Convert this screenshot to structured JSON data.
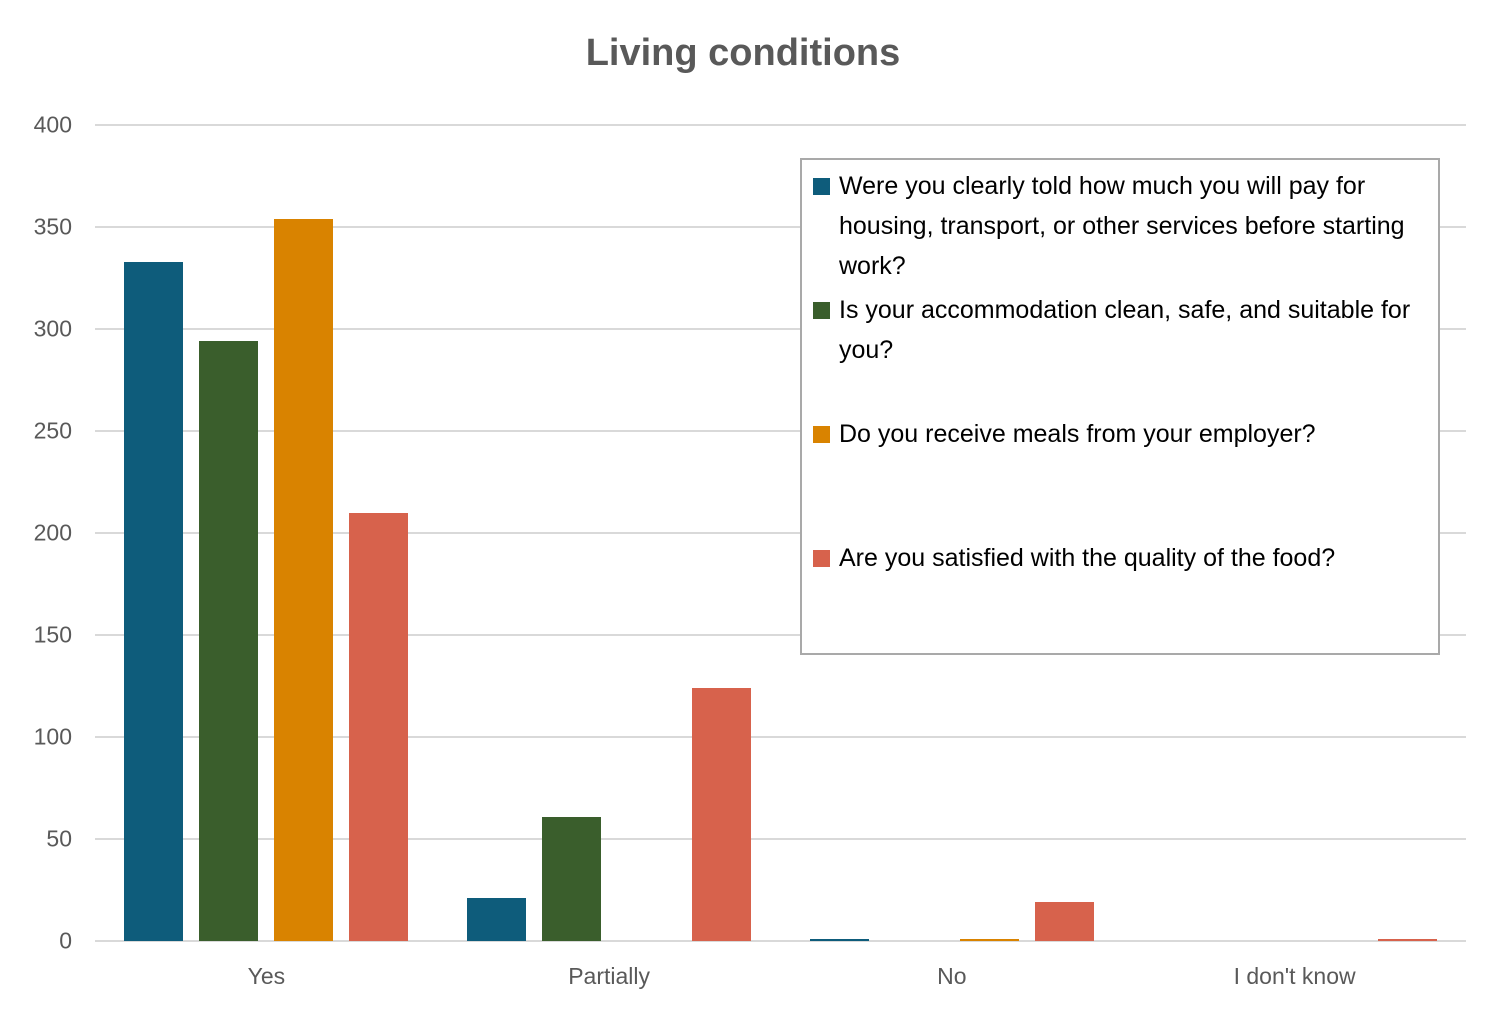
{
  "chart_data": {
    "type": "bar",
    "title": "Living conditions",
    "categories": [
      "Yes",
      "Partially",
      "No",
      "I don't know"
    ],
    "series": [
      {
        "name": "Were you clearly told how much you will pay for housing, transport, or other services before starting work?",
        "color": "#0e5c7b",
        "values": [
          333,
          21,
          1,
          0
        ]
      },
      {
        "name": "Is your accommodation clean, safe, and suitable for you?",
        "color": "#3a5e2c",
        "values": [
          294,
          61,
          0,
          0
        ]
      },
      {
        "name": "Do you receive meals from your employer?",
        "color": "#d98300",
        "values": [
          354,
          0,
          1,
          0
        ]
      },
      {
        "name": "Are you satisfied with the quality of the food?",
        "color": "#d7624c",
        "values": [
          210,
          124,
          19,
          1
        ]
      }
    ],
    "ylim": [
      0,
      400
    ],
    "yticks": [
      400,
      350,
      300,
      250,
      200,
      150,
      100,
      50,
      0
    ],
    "grid": true,
    "legend_position": "right-overlay",
    "axis_text_color": "#595959",
    "gridline_color": "#d9d9d9",
    "title_color": "#595959"
  }
}
